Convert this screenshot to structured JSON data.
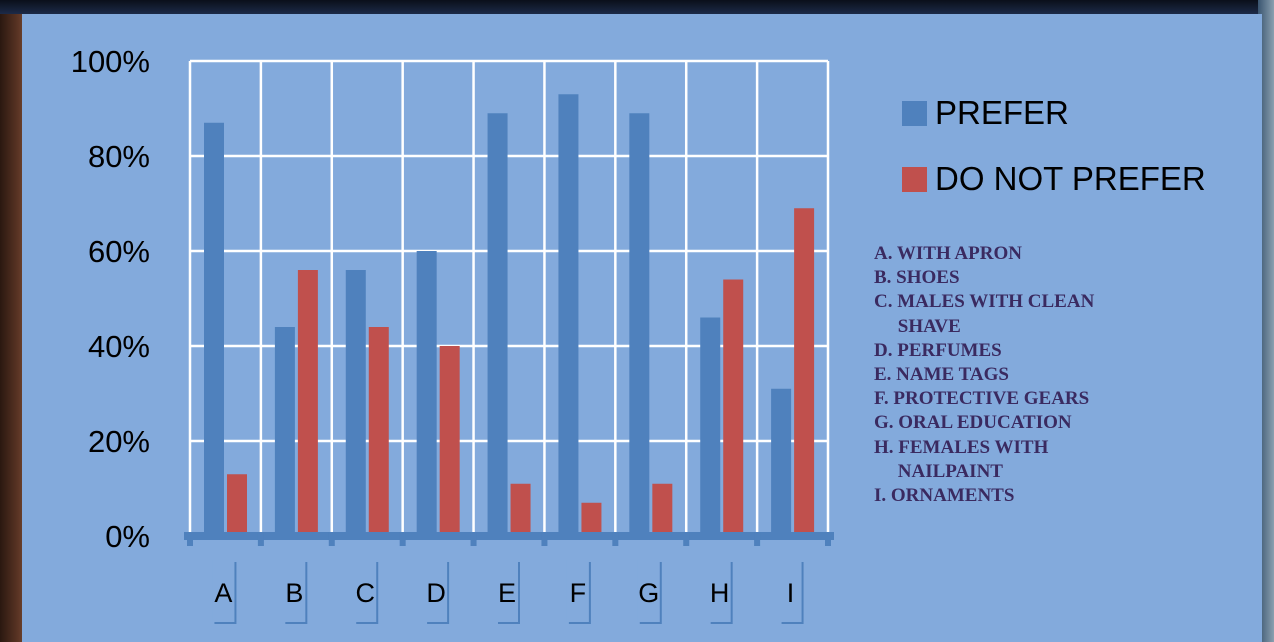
{
  "chart_data": {
    "type": "bar",
    "categories": [
      "A",
      "B",
      "C",
      "D",
      "E",
      "F",
      "G",
      "H",
      "I"
    ],
    "series": [
      {
        "name": "PREFER",
        "color": "#4f81bd",
        "values": [
          87,
          44,
          56,
          60,
          89,
          93,
          89,
          46,
          31
        ]
      },
      {
        "name": "DO NOT PREFER",
        "color": "#c0504d",
        "values": [
          13,
          56,
          44,
          40,
          11,
          7,
          11,
          54,
          69
        ]
      }
    ],
    "ylim": [
      0,
      100
    ],
    "yticks": [
      "0%",
      "20%",
      "40%",
      "60%",
      "80%",
      "100%"
    ],
    "grid": true,
    "legend_position": "right"
  },
  "notes": [
    "A. WITH APRON",
    "B. SHOES",
    "C. MALES WITH CLEAN",
    "     SHAVE",
    "D. PERFUMES",
    "E. NAME TAGS",
    "F. PROTECTIVE GEARS",
    "G. ORAL EDUCATION",
    "H. FEMALES WITH",
    "     NAILPAINT",
    "I. ORNAMENTS"
  ]
}
